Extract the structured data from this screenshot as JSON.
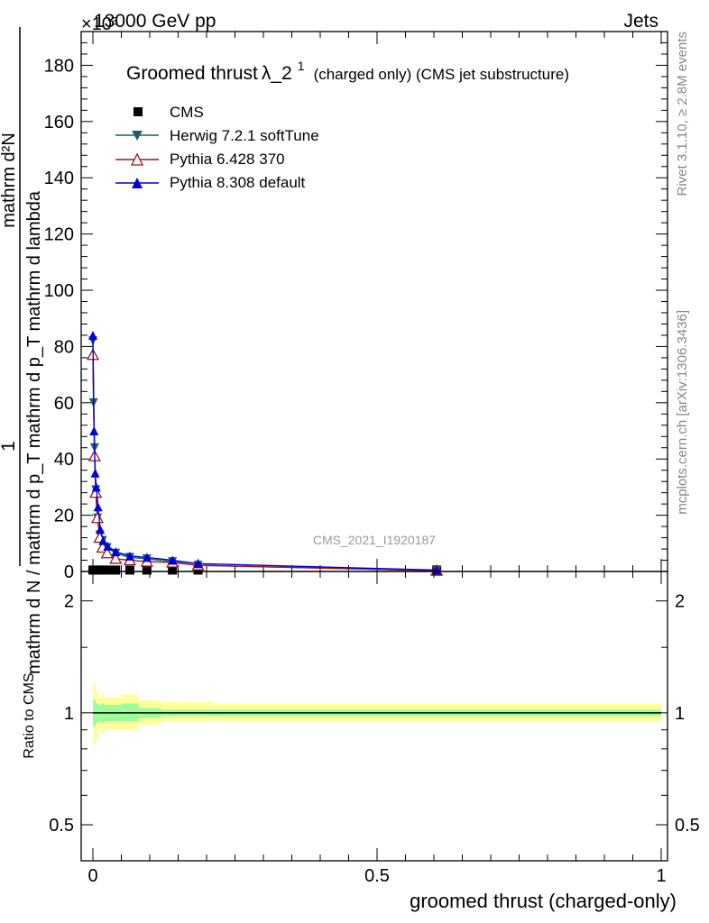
{
  "header": {
    "left": "13000 GeV pp",
    "right": "Jets",
    "exponent": "×10³"
  },
  "side_labels": {
    "rivet": "Rivet 3.1.10, ≥ 2.8M events",
    "mcplots": "mcplots.cern.ch [arXiv:1306.3436]"
  },
  "watermark": "CMS_2021_I1920187",
  "colors": {
    "cms": "#000000",
    "herwig": "#1f5f63",
    "pythia6": "#a0141e",
    "pythia8": "#0000dd",
    "band_outer": "#ffff99",
    "band_inner": "#99ff99"
  },
  "chart_data": [
    {
      "type": "line",
      "title_main": "Groomed thrust",
      "title_lambda": "λ_2",
      "title_sup": "1",
      "title_suffix": "(charged only) (CMS jet substructure)",
      "xlabel": "groomed thrust (charged-only)",
      "ylabel_numer": "1",
      "ylabel_denom": "mathrm d N / mathrm d p_T mathrm d p_T mathrm d lambda",
      "ylabel_top": "mathrm d²N",
      "xlim": [
        0,
        1
      ],
      "ylim": [
        0,
        192
      ],
      "y_scale_note": "values ×10³",
      "xticks": [
        "0",
        "0.5",
        "1"
      ],
      "yticks": [
        "0",
        "20",
        "40",
        "60",
        "80",
        "100",
        "120",
        "140",
        "160",
        "180"
      ],
      "legend": [
        "CMS",
        "Herwig 7.2.1 softTune",
        "Pythia 6.428 370",
        "Pythia 8.308 default"
      ],
      "series": [
        {
          "name": "CMS",
          "x": [
            0.0,
            0.005,
            0.01,
            0.015,
            0.02,
            0.03,
            0.04,
            0.065,
            0.095,
            0.14,
            0.185,
            0.605
          ],
          "y": [
            0.5,
            0.5,
            0.5,
            0.5,
            0.5,
            0.5,
            0.5,
            0.5,
            0.5,
            0.5,
            0.5,
            0.5
          ]
        },
        {
          "name": "Herwig 7.2.1 softTune",
          "x": [
            0.0,
            0.001,
            0.003,
            0.005,
            0.008,
            0.012,
            0.017,
            0.025,
            0.04,
            0.065,
            0.095,
            0.14,
            0.185,
            0.605
          ],
          "y": [
            82,
            60,
            44,
            29,
            19,
            13,
            11,
            8.5,
            6.5,
            5,
            4.5,
            3.5,
            2.2,
            0.3
          ]
        },
        {
          "name": "Pythia 6.428 370",
          "x": [
            0.0,
            0.003,
            0.005,
            0.008,
            0.012,
            0.017,
            0.025,
            0.04,
            0.065,
            0.095,
            0.14,
            0.185,
            0.605
          ],
          "y": [
            77,
            41,
            28,
            19,
            12,
            8.5,
            6.5,
            4.5,
            4,
            3.5,
            3.2,
            2.2,
            0.3
          ]
        },
        {
          "name": "Pythia 8.308 default",
          "x": [
            0.0,
            0.002,
            0.004,
            0.006,
            0.009,
            0.013,
            0.018,
            0.026,
            0.04,
            0.065,
            0.095,
            0.14,
            0.185,
            0.605
          ],
          "y": [
            84,
            50,
            35,
            30,
            23,
            15,
            11,
            9,
            7,
            5.5,
            5,
            4,
            2.8,
            0.5
          ]
        }
      ]
    },
    {
      "type": "line",
      "ylabel": "Ratio to CMS",
      "ylim": [
        0.4,
        2.4
      ],
      "yscale": "log",
      "yticks": [
        "0.5",
        "1",
        "2"
      ],
      "series": [
        {
          "name": "CMS",
          "x": [
            0,
            1
          ],
          "y": [
            1,
            1
          ]
        }
      ],
      "bands": [
        {
          "name": "outer",
          "edges": [
            0.0,
            0.005,
            0.01,
            0.015,
            0.02,
            0.03,
            0.05,
            0.08,
            0.12,
            0.21,
            1.0
          ],
          "lo": [
            0.82,
            0.85,
            0.9,
            0.88,
            0.9,
            0.9,
            0.9,
            0.93,
            0.95,
            0.95
          ],
          "hi": [
            1.2,
            1.14,
            1.1,
            1.12,
            1.1,
            1.1,
            1.12,
            1.08,
            1.07,
            1.06
          ]
        },
        {
          "name": "inner",
          "edges": [
            0.0,
            0.005,
            0.01,
            0.015,
            0.02,
            0.03,
            0.05,
            0.08,
            0.12,
            0.21,
            1.0
          ],
          "lo": [
            0.92,
            0.94,
            0.95,
            0.94,
            0.95,
            0.95,
            0.95,
            0.97,
            0.98,
            0.98
          ],
          "hi": [
            1.08,
            1.06,
            1.05,
            1.06,
            1.05,
            1.05,
            1.06,
            1.03,
            1.02,
            1.02
          ]
        }
      ]
    }
  ]
}
